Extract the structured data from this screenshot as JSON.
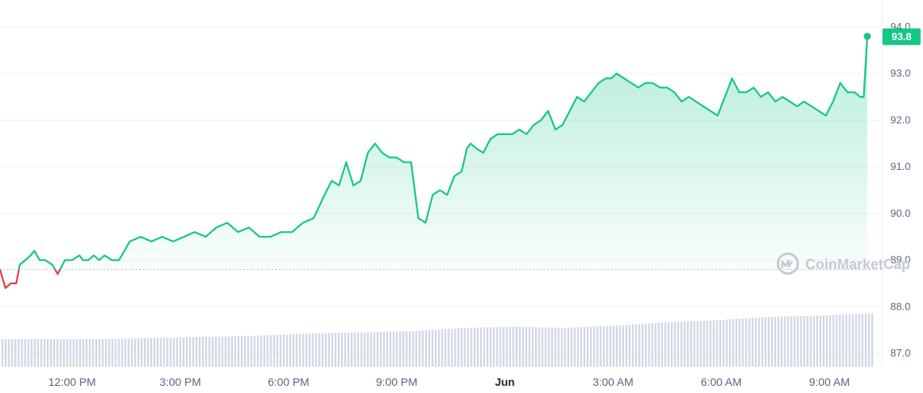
{
  "watermark": "CoinMarketCap",
  "colors": {
    "up": "#16c784",
    "down": "#ea3943",
    "grid": "#eff2f5",
    "axis_text": "#58667e",
    "volume": "#cfd6e4",
    "reference": "#a6b0c3"
  },
  "chart_data": {
    "type": "line",
    "reference_value": 88.8,
    "last_value": 93.8,
    "last_label": "93.8",
    "yticks": [
      "94.0",
      "93.0",
      "92.0",
      "91.0",
      "90.0",
      "89.0",
      "88.0",
      "87.0"
    ],
    "ytick_values": [
      94,
      93,
      92,
      91,
      90,
      89,
      88,
      87
    ],
    "ylim": [
      86.9,
      94.2
    ],
    "xlim": [
      0,
      24.25
    ],
    "xticks": [
      {
        "label": "12:00 PM",
        "x": 2,
        "bold": false
      },
      {
        "label": "3:00 PM",
        "x": 5,
        "bold": false
      },
      {
        "label": "6:00 PM",
        "x": 8,
        "bold": false
      },
      {
        "label": "9:00 PM",
        "x": 11,
        "bold": false
      },
      {
        "label": "Jun",
        "x": 14,
        "bold": true
      },
      {
        "label": "3:00 AM",
        "x": 17,
        "bold": false
      },
      {
        "label": "6:00 AM",
        "x": 20,
        "bold": false
      },
      {
        "label": "9:00 AM",
        "x": 23,
        "bold": false
      }
    ],
    "series": [
      {
        "x": [
          0,
          0.15,
          0.3,
          0.45,
          0.55,
          0.7,
          0.85,
          0.95,
          1.1,
          1.25,
          1.45,
          1.6,
          1.8,
          2.0,
          2.2,
          2.3,
          2.45,
          2.6,
          2.75,
          2.9,
          3.1,
          3.3,
          3.6,
          3.9,
          4.2,
          4.5,
          4.8,
          5.1,
          5.4,
          5.7,
          6.0,
          6.3,
          6.6,
          6.9,
          7.2,
          7.5,
          7.8,
          8.1,
          8.4,
          8.7,
          9.0,
          9.2,
          9.4,
          9.6,
          9.8,
          10.0,
          10.2,
          10.4,
          10.6,
          10.8,
          11.0,
          11.2,
          11.4,
          11.6,
          11.8,
          12.0,
          12.2,
          12.4,
          12.6,
          12.8,
          12.95,
          13.05,
          13.2,
          13.4,
          13.6,
          13.8,
          14.0,
          14.2,
          14.4,
          14.6,
          14.8,
          15.0,
          15.2,
          15.4,
          15.6,
          15.8,
          16.0,
          16.2,
          16.4,
          16.6,
          16.8,
          16.95,
          17.1,
          17.3,
          17.5,
          17.7,
          17.9,
          18.1,
          18.3,
          18.5,
          18.7,
          18.9,
          19.1,
          19.3,
          19.5,
          19.7,
          19.9,
          20.1,
          20.3,
          20.5,
          20.7,
          20.9,
          21.1,
          21.3,
          21.5,
          21.7,
          21.9,
          22.1,
          22.3,
          22.5,
          22.7,
          22.9,
          23.1,
          23.3,
          23.5,
          23.7,
          23.85,
          23.95,
          24.05
        ],
        "y": [
          88.8,
          88.4,
          88.5,
          88.5,
          88.9,
          89.0,
          89.1,
          89.2,
          89.0,
          89.0,
          88.9,
          88.7,
          89.0,
          89.0,
          89.1,
          89.0,
          89.0,
          89.1,
          89.0,
          89.1,
          89.0,
          89.0,
          89.4,
          89.5,
          89.4,
          89.5,
          89.4,
          89.5,
          89.6,
          89.5,
          89.7,
          89.8,
          89.6,
          89.7,
          89.5,
          89.5,
          89.6,
          89.6,
          89.8,
          89.9,
          90.4,
          90.7,
          90.6,
          91.1,
          90.6,
          90.7,
          91.3,
          91.5,
          91.3,
          91.2,
          91.2,
          91.1,
          91.1,
          89.9,
          89.8,
          90.4,
          90.5,
          90.4,
          90.8,
          90.9,
          91.4,
          91.5,
          91.4,
          91.3,
          91.6,
          91.7,
          91.7,
          91.7,
          91.8,
          91.7,
          91.9,
          92.0,
          92.2,
          91.8,
          91.9,
          92.2,
          92.5,
          92.4,
          92.6,
          92.8,
          92.9,
          92.9,
          93.0,
          92.9,
          92.8,
          92.7,
          92.8,
          92.8,
          92.7,
          92.7,
          92.6,
          92.4,
          92.5,
          92.4,
          92.3,
          92.2,
          92.1,
          92.5,
          92.9,
          92.6,
          92.6,
          92.7,
          92.5,
          92.6,
          92.4,
          92.5,
          92.4,
          92.3,
          92.4,
          92.3,
          92.2,
          92.1,
          92.4,
          92.8,
          92.6,
          92.6,
          92.5,
          92.5,
          93.8
        ]
      }
    ],
    "volume_levels": [
      0.25,
      0.25,
      0.25,
      0.26,
      0.27,
      0.28,
      0.3,
      0.31,
      0.32,
      0.35,
      0.36,
      0.35,
      0.37,
      0.4,
      0.42,
      0.45,
      0.46,
      0.48
    ]
  }
}
